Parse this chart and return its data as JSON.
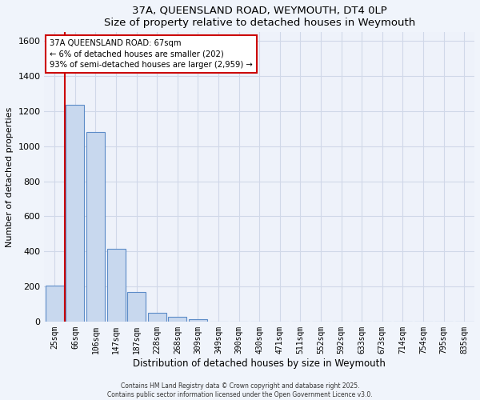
{
  "title": "37A, QUEENSLAND ROAD, WEYMOUTH, DT4 0LP",
  "subtitle": "Size of property relative to detached houses in Weymouth",
  "xlabel": "Distribution of detached houses by size in Weymouth",
  "ylabel": "Number of detached properties",
  "bar_labels": [
    "25sqm",
    "66sqm",
    "106sqm",
    "147sqm",
    "187sqm",
    "228sqm",
    "268sqm",
    "309sqm",
    "349sqm",
    "390sqm",
    "430sqm",
    "471sqm",
    "511sqm",
    "552sqm",
    "592sqm",
    "633sqm",
    "673sqm",
    "714sqm",
    "754sqm",
    "795sqm",
    "835sqm"
  ],
  "bar_values": [
    205,
    1235,
    1080,
    415,
    170,
    50,
    25,
    15,
    0,
    0,
    0,
    0,
    0,
    0,
    0,
    0,
    0,
    0,
    0,
    0,
    0
  ],
  "bar_color": "#c8d8ee",
  "bar_edge_color": "#5b8bc7",
  "ylim": [
    0,
    1650
  ],
  "yticks": [
    0,
    200,
    400,
    600,
    800,
    1000,
    1200,
    1400,
    1600
  ],
  "property_line_color": "#cc0000",
  "annotation_title": "37A QUEENSLAND ROAD: 67sqm",
  "annotation_line1": "← 6% of detached houses are smaller (202)",
  "annotation_line2": "93% of semi-detached houses are larger (2,959) →",
  "annotation_box_facecolor": "#ffffff",
  "annotation_box_edgecolor": "#cc0000",
  "footer1": "Contains HM Land Registry data © Crown copyright and database right 2025.",
  "footer2": "Contains public sector information licensed under the Open Government Licence v3.0.",
  "fig_bg_color": "#f0f4fb",
  "plot_bg_color": "#eef2fa",
  "grid_color": "#d0d8e8"
}
